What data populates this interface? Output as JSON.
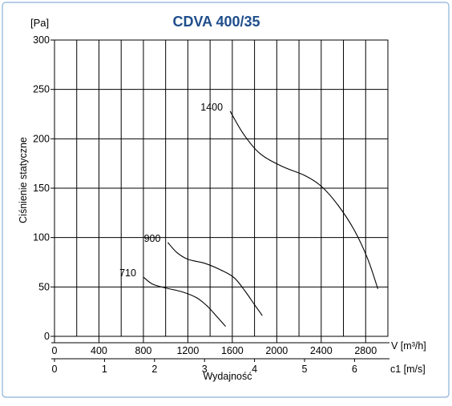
{
  "chart_data": {
    "type": "line",
    "title": "CDVA 400/35",
    "ylabel": "Ciśnienie statyczne",
    "yunit": "[Pa]",
    "xlabel": "Wydajność",
    "xunit_primary": "V [m³/h]",
    "xunit_secondary": "c1 [m/s]",
    "ylim": [
      0,
      300
    ],
    "xlim": [
      0,
      3000
    ],
    "y_ticks": [
      0,
      50,
      100,
      150,
      200,
      250,
      300
    ],
    "x_ticks": [
      0,
      400,
      800,
      1200,
      1600,
      2000,
      2400,
      2800
    ],
    "x2_ticks": [
      0,
      1,
      2,
      3,
      4,
      5,
      6
    ],
    "x2_scale_m3h_per_ms": 450,
    "grid": true,
    "series": [
      {
        "name": "1400",
        "x": [
          1580,
          1700,
          1850,
          2050,
          2250,
          2400,
          2550,
          2700,
          2820,
          2910
        ],
        "y": [
          228,
          205,
          185,
          172,
          163,
          152,
          133,
          107,
          78,
          48
        ]
      },
      {
        "name": "900",
        "x": [
          1020,
          1100,
          1200,
          1350,
          1500,
          1620,
          1720,
          1800,
          1870
        ],
        "y": [
          95,
          85,
          78,
          74,
          67,
          59,
          45,
          32,
          21
        ]
      },
      {
        "name": "710",
        "x": [
          800,
          880,
          1000,
          1150,
          1280,
          1380,
          1460,
          1540
        ],
        "y": [
          60,
          53,
          49,
          45,
          39,
          30,
          20,
          10
        ]
      }
    ]
  },
  "colors": {
    "title": "#1f4e8c",
    "frame": "#8ab0d6",
    "grid": "#000000",
    "curve": "#000000"
  }
}
